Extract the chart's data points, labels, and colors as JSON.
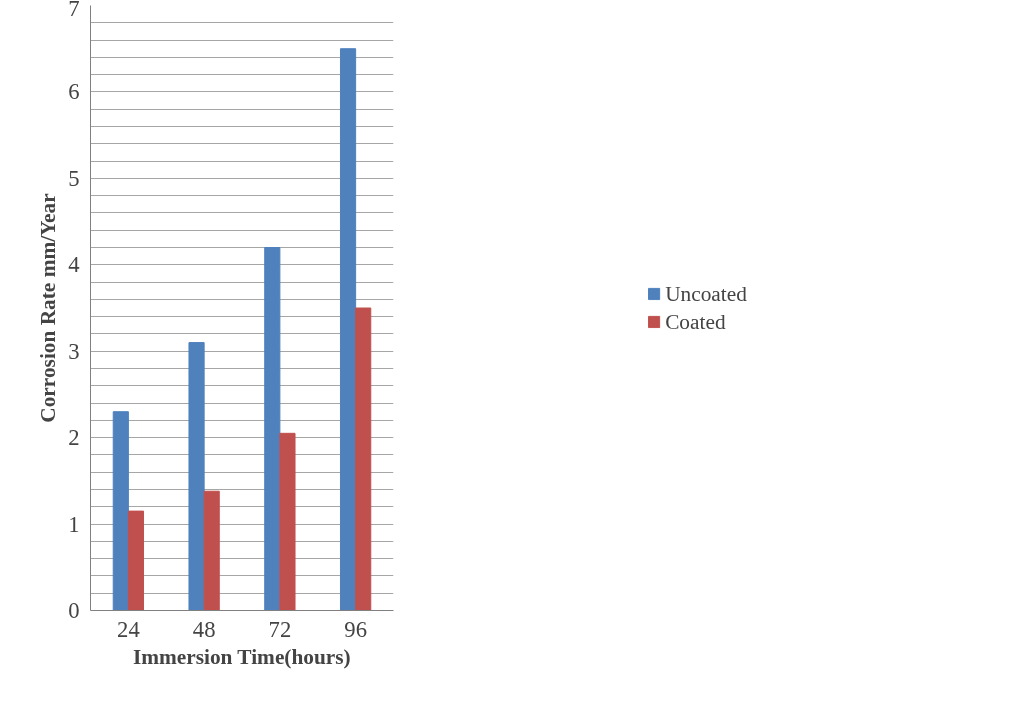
{
  "chart_data": {
    "type": "bar",
    "xlabel": "Immersion Time(hours)",
    "ylabel": "Corrosion Rate mm/Year",
    "categories": [
      "24",
      "48",
      "72",
      "96"
    ],
    "series": [
      {
        "name": "Uncoated",
        "color": "#4f81bd",
        "values": [
          2.3,
          3.1,
          4.2,
          6.5
        ]
      },
      {
        "name": "Coated",
        "color": "#c0504d",
        "values": [
          1.15,
          1.38,
          2.05,
          3.5
        ]
      }
    ],
    "ylim": [
      0,
      7
    ],
    "yticks": [
      0,
      {
        "value": 0.2,
        "label": null
      },
      {
        "value": 0.4,
        "label": null
      },
      {
        "value": 0.6,
        "label": null
      },
      {
        "value": 0.8,
        "label": null
      },
      1,
      {
        "value": 1.2,
        "label": null
      },
      {
        "value": 1.4,
        "label": null
      },
      {
        "value": 1.6,
        "label": null
      },
      {
        "value": 1.8,
        "label": null
      },
      2,
      {
        "value": 2.2,
        "label": null
      },
      {
        "value": 2.4,
        "label": null
      },
      {
        "value": 2.6,
        "label": null
      },
      {
        "value": 2.8,
        "label": null
      },
      3,
      {
        "value": 3.2,
        "label": null
      },
      {
        "value": 3.4,
        "label": null
      },
      {
        "value": 3.6,
        "label": null
      },
      {
        "value": 3.8,
        "label": null
      },
      4,
      {
        "value": 4.2,
        "label": null
      },
      {
        "value": 4.4,
        "label": null
      },
      {
        "value": 4.6,
        "label": null
      },
      {
        "value": 4.8,
        "label": null
      },
      5,
      {
        "value": 5.2,
        "label": null
      },
      {
        "value": 5.4,
        "label": null
      },
      {
        "value": 5.6,
        "label": null
      },
      {
        "value": 5.8,
        "label": null
      },
      6,
      {
        "value": 6.2,
        "label": null
      },
      {
        "value": 6.4,
        "label": null
      },
      {
        "value": 6.6,
        "label": null
      },
      {
        "value": 6.8,
        "label": null
      },
      7
    ],
    "grid": "y",
    "legend": "right"
  }
}
